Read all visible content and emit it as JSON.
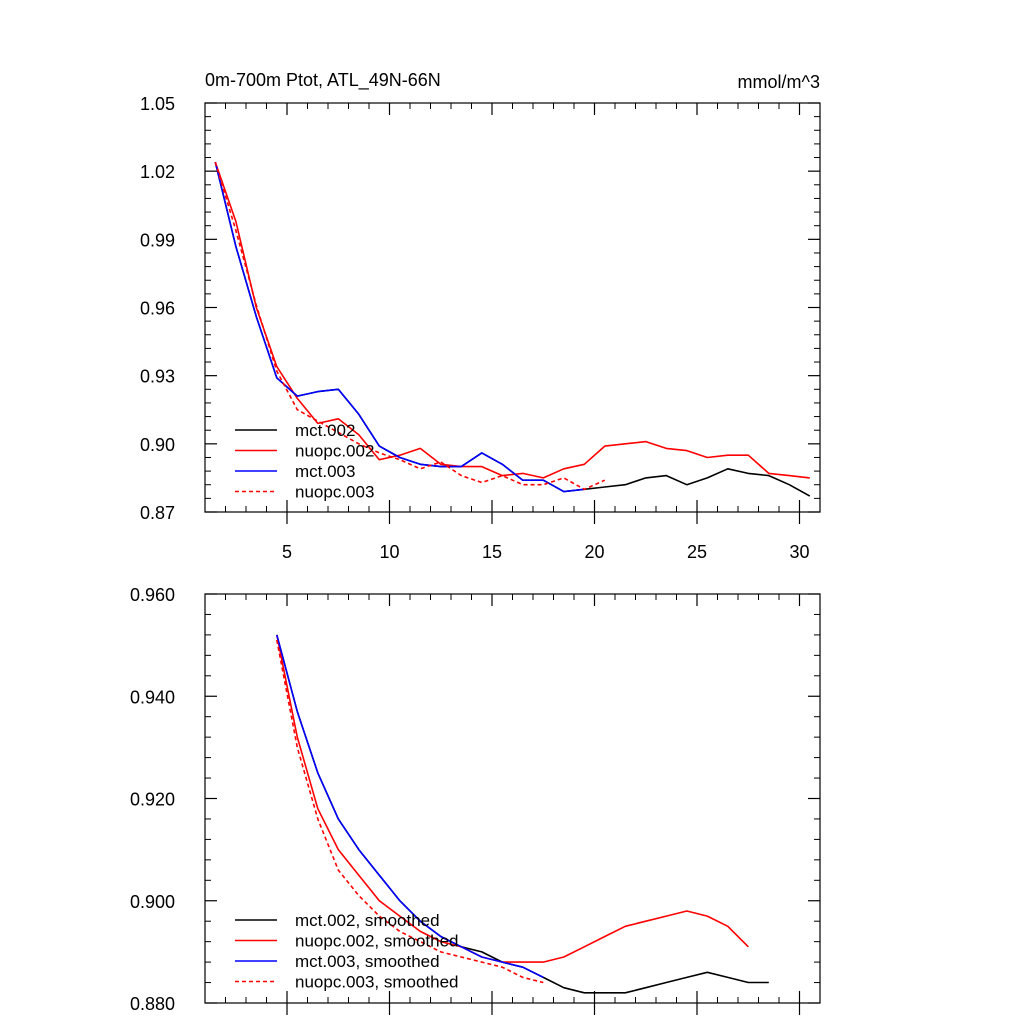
{
  "chart_data": [
    {
      "type": "line",
      "title": "0m-700m Ptot, ATL_49N-66N",
      "units": "mmol/m^3",
      "xlim": [
        1,
        31
      ],
      "ylim": [
        0.87,
        1.05
      ],
      "xticks": [
        5,
        10,
        15,
        20,
        25,
        30
      ],
      "yticks": [
        0.87,
        0.9,
        0.93,
        0.96,
        0.99,
        1.02,
        1.05
      ],
      "ytick_labels": [
        "0.87",
        "0.90",
        "0.93",
        "0.96",
        "0.99",
        "1.02",
        "1.05"
      ],
      "grid": false,
      "legend_position": "bottom-left",
      "series": [
        {
          "name": "mct.002",
          "color": "#000000",
          "dash": "solid",
          "x": [
            1.5,
            2.5,
            3.5,
            4.5,
            5.5,
            6.5,
            7.5,
            8.5,
            9.5,
            10.5,
            11.5,
            12.5,
            13.5,
            14.5,
            15.5,
            16.5,
            17.5,
            18.5,
            19.5,
            20.5,
            21.5,
            22.5,
            23.5,
            24.5,
            25.5,
            26.5,
            27.5,
            28.5,
            29.5,
            30.5
          ],
          "y": [
            1.024,
            0.987,
            0.956,
            0.929,
            0.921,
            0.923,
            0.924,
            0.913,
            0.899,
            0.894,
            0.891,
            0.89,
            0.89,
            0.896,
            0.891,
            0.884,
            0.884,
            0.879,
            0.88,
            0.881,
            0.882,
            0.885,
            0.886,
            0.882,
            0.885,
            0.889,
            0.887,
            0.886,
            0.882,
            0.877
          ]
        },
        {
          "name": "nuopc.002",
          "color": "#ff0000",
          "dash": "solid",
          "x": [
            1.5,
            2.5,
            3.5,
            4.5,
            5.5,
            6.5,
            7.5,
            8.5,
            9.5,
            10.5,
            11.5,
            12.5,
            13.5,
            14.5,
            15.5,
            16.5,
            17.5,
            18.5,
            19.5,
            20.5,
            21.5,
            22.5,
            23.5,
            24.5,
            25.5,
            26.5,
            27.5,
            28.5,
            29.5,
            30.5
          ],
          "y": [
            1.024,
            0.998,
            0.96,
            0.934,
            0.92,
            0.909,
            0.911,
            0.904,
            0.893,
            0.895,
            0.898,
            0.891,
            0.89,
            0.89,
            0.886,
            0.887,
            0.885,
            0.889,
            0.891,
            0.899,
            0.9,
            0.901,
            0.898,
            0.897,
            0.894,
            0.895,
            0.895,
            0.887,
            0.886,
            0.885
          ]
        },
        {
          "name": "mct.003",
          "color": "#0000ff",
          "dash": "solid",
          "x": [
            1.5,
            2.5,
            3.5,
            4.5,
            5.5,
            6.5,
            7.5,
            8.5,
            9.5,
            10.5,
            11.5,
            12.5,
            13.5,
            14.5,
            15.5,
            16.5,
            17.5,
            18.5,
            19.5
          ],
          "y": [
            1.024,
            0.987,
            0.956,
            0.929,
            0.921,
            0.923,
            0.924,
            0.913,
            0.899,
            0.894,
            0.891,
            0.89,
            0.89,
            0.896,
            0.891,
            0.884,
            0.884,
            0.879,
            0.88
          ]
        },
        {
          "name": "nuopc.003",
          "color": "#ff0000",
          "dash": "dashed",
          "x": [
            1.5,
            2.5,
            3.5,
            4.5,
            5.5,
            6.5,
            7.5,
            8.5,
            9.5,
            10.5,
            11.5,
            12.5,
            13.5,
            14.5,
            15.5,
            16.5,
            17.5,
            18.5,
            19.5,
            20.5
          ],
          "y": [
            1.024,
            0.994,
            0.961,
            0.932,
            0.915,
            0.91,
            0.905,
            0.9,
            0.896,
            0.893,
            0.889,
            0.892,
            0.886,
            0.883,
            0.886,
            0.882,
            0.882,
            0.885,
            0.88,
            0.884
          ]
        }
      ]
    },
    {
      "type": "line",
      "xlim": [
        1,
        31
      ],
      "ylim": [
        0.88,
        0.96
      ],
      "xticks": [
        5,
        10,
        15,
        20,
        25,
        30
      ],
      "yticks": [
        0.88,
        0.9,
        0.92,
        0.94,
        0.96
      ],
      "ytick_labels": [
        "0.880",
        "0.900",
        "0.920",
        "0.940",
        "0.960"
      ],
      "grid": false,
      "legend_position": "bottom-left",
      "series": [
        {
          "name": "mct.002, smoothed",
          "color": "#000000",
          "dash": "solid",
          "x": [
            4.5,
            5.5,
            6.5,
            7.5,
            8.5,
            9.5,
            10.5,
            11.5,
            12.5,
            13.5,
            14.5,
            15.5,
            16.5,
            17.5,
            18.5,
            19.5,
            20.5,
            21.5,
            22.5,
            23.5,
            24.5,
            25.5,
            26.5,
            27.5,
            28.5
          ],
          "y": [
            0.952,
            0.937,
            0.925,
            0.916,
            0.91,
            0.905,
            0.9,
            0.896,
            0.893,
            0.891,
            0.89,
            0.888,
            0.887,
            0.885,
            0.883,
            0.882,
            0.882,
            0.882,
            0.883,
            0.884,
            0.885,
            0.886,
            0.885,
            0.884,
            0.884
          ]
        },
        {
          "name": "nuopc.002, smoothed",
          "color": "#ff0000",
          "dash": "solid",
          "x": [
            4.5,
            5.5,
            6.5,
            7.5,
            8.5,
            9.5,
            10.5,
            11.5,
            12.5,
            13.5,
            14.5,
            15.5,
            16.5,
            17.5,
            18.5,
            19.5,
            20.5,
            21.5,
            22.5,
            23.5,
            24.5,
            25.5,
            26.5,
            27.5
          ],
          "y": [
            0.952,
            0.932,
            0.918,
            0.91,
            0.905,
            0.9,
            0.897,
            0.894,
            0.892,
            0.891,
            0.889,
            0.888,
            0.888,
            0.888,
            0.889,
            0.891,
            0.893,
            0.895,
            0.896,
            0.897,
            0.898,
            0.897,
            0.895,
            0.891
          ]
        },
        {
          "name": "mct.003, smoothed",
          "color": "#0000ff",
          "dash": "solid",
          "x": [
            4.5,
            5.5,
            6.5,
            7.5,
            8.5,
            9.5,
            10.5,
            11.5,
            12.5,
            13.5,
            14.5,
            15.5,
            16.5,
            17.5
          ],
          "y": [
            0.952,
            0.937,
            0.925,
            0.916,
            0.91,
            0.905,
            0.9,
            0.896,
            0.893,
            0.891,
            0.889,
            0.888,
            0.887,
            0.885
          ]
        },
        {
          "name": "nuopc.003, smoothed",
          "color": "#ff0000",
          "dash": "dashed",
          "x": [
            4.5,
            5.5,
            6.5,
            7.5,
            8.5,
            9.5,
            10.5,
            11.5,
            12.5,
            13.5,
            14.5,
            15.5,
            16.5,
            17.5
          ],
          "y": [
            0.951,
            0.93,
            0.916,
            0.906,
            0.901,
            0.897,
            0.894,
            0.892,
            0.89,
            0.889,
            0.888,
            0.887,
            0.885,
            0.884
          ]
        }
      ]
    }
  ]
}
